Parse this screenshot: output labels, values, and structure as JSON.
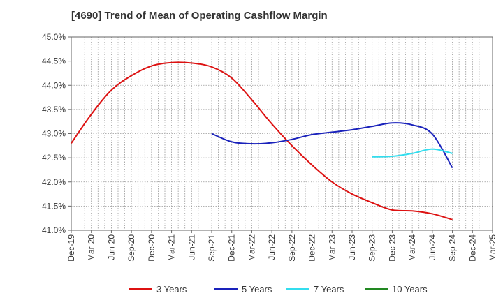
{
  "title": "[4690]  Trend of Mean of Operating Cashflow Margin",
  "chart_data": {
    "type": "line",
    "title": "[4690]  Trend of Mean of Operating Cashflow Margin",
    "xlabel": "",
    "ylabel": "",
    "ylim": [
      41.0,
      45.0
    ],
    "yticks": [
      "41.0%",
      "41.5%",
      "42.0%",
      "42.5%",
      "43.0%",
      "43.5%",
      "44.0%",
      "44.5%",
      "45.0%"
    ],
    "ytick_values": [
      41.0,
      41.5,
      42.0,
      42.5,
      43.0,
      43.5,
      44.0,
      44.5,
      45.0
    ],
    "x_categories": [
      "Dec-19",
      "Mar-20",
      "Jun-20",
      "Sep-20",
      "Dec-20",
      "Mar-21",
      "Jun-21",
      "Sep-21",
      "Dec-21",
      "Mar-22",
      "Jun-22",
      "Sep-22",
      "Dec-22",
      "Mar-23",
      "Jun-23",
      "Sep-23",
      "Dec-23",
      "Mar-24",
      "Jun-24",
      "Sep-24",
      "Dec-24",
      "Mar-25"
    ],
    "grid": true,
    "legend_position": "bottom",
    "series": [
      {
        "name": "3 Years",
        "color": "#dd1111",
        "x": [
          "Dec-19",
          "Mar-20",
          "Jun-20",
          "Sep-20",
          "Dec-20",
          "Mar-21",
          "Jun-21",
          "Sep-21",
          "Dec-21",
          "Mar-22",
          "Jun-22",
          "Sep-22",
          "Dec-22",
          "Mar-23",
          "Jun-23",
          "Sep-23",
          "Dec-23",
          "Mar-24",
          "Jun-24",
          "Sep-24"
        ],
        "values": [
          42.8,
          43.4,
          43.9,
          44.2,
          44.4,
          44.47,
          44.46,
          44.38,
          44.15,
          43.7,
          43.2,
          42.75,
          42.35,
          42.0,
          41.75,
          41.57,
          41.42,
          41.4,
          41.34,
          41.22
        ]
      },
      {
        "name": "5 Years",
        "color": "#1a22bb",
        "x": [
          "Sep-21",
          "Dec-21",
          "Mar-22",
          "Jun-22",
          "Sep-22",
          "Dec-22",
          "Mar-23",
          "Jun-23",
          "Sep-23",
          "Dec-23",
          "Mar-24",
          "Jun-24",
          "Sep-24"
        ],
        "values": [
          43.0,
          42.83,
          42.79,
          42.81,
          42.88,
          42.98,
          43.03,
          43.08,
          43.15,
          43.22,
          43.18,
          42.99,
          42.29
        ]
      },
      {
        "name": "7 Years",
        "color": "#33ddee",
        "x": [
          "Sep-23",
          "Dec-23",
          "Mar-24",
          "Jun-24",
          "Sep-24"
        ],
        "values": [
          42.52,
          42.53,
          42.59,
          42.68,
          42.59
        ]
      },
      {
        "name": "10 Years",
        "color": "#228822",
        "x": [],
        "values": []
      }
    ]
  }
}
